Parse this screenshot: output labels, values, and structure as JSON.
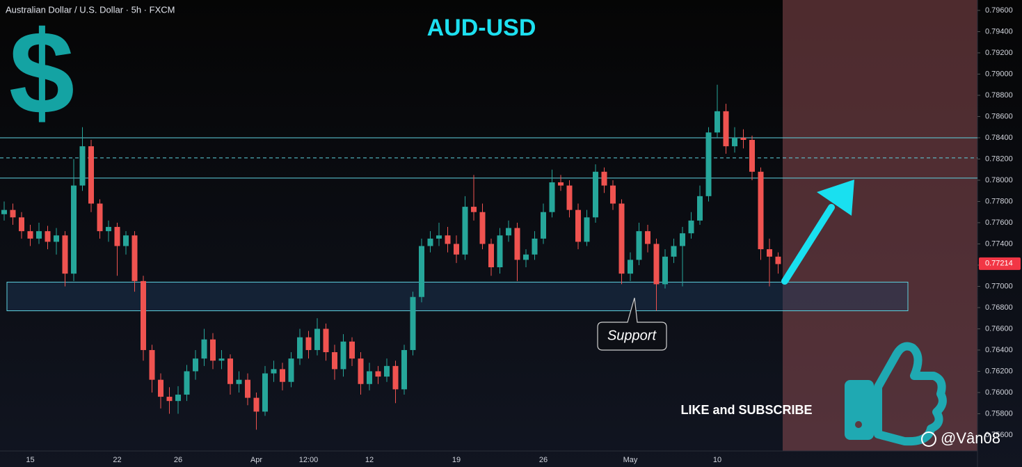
{
  "chart_data": {
    "type": "candlestick",
    "title": "Australian Dollar / U.S. Dollar · 5h · FXCM",
    "heading": "AUD-USD",
    "categories": [
      null,
      null,
      null,
      "15",
      null,
      null,
      null,
      null,
      null,
      null,
      null,
      null,
      null,
      "22",
      null,
      null,
      null,
      null,
      null,
      null,
      "26",
      null,
      null,
      null,
      null,
      null,
      null,
      null,
      null,
      "Apr",
      null,
      null,
      null,
      null,
      null,
      "12:00",
      null,
      null,
      null,
      null,
      null,
      null,
      "12",
      null,
      null,
      null,
      null,
      null,
      null,
      null,
      null,
      null,
      "19",
      null,
      null,
      null,
      null,
      null,
      null,
      null,
      null,
      null,
      "26",
      null,
      null,
      null,
      null,
      null,
      null,
      null,
      null,
      null,
      "May",
      null,
      null,
      null,
      null,
      null,
      null,
      null,
      null,
      null,
      "10",
      null,
      null,
      null,
      null,
      null,
      null,
      null
    ],
    "open": [
      0.7768,
      0.7772,
      0.7765,
      0.7752,
      0.7745,
      0.7752,
      0.7742,
      0.7748,
      0.7712,
      0.7795,
      0.7832,
      0.7778,
      0.7752,
      0.7756,
      0.7738,
      0.7748,
      0.7705,
      0.764,
      0.7612,
      0.7596,
      0.7592,
      0.7598,
      0.762,
      0.7632,
      0.765,
      0.763,
      0.7632,
      0.7608,
      0.7612,
      0.7595,
      0.7582,
      0.7618,
      0.7622,
      0.761,
      0.7632,
      0.7652,
      0.764,
      0.766,
      0.7638,
      0.7622,
      0.7648,
      0.7632,
      0.7608,
      0.762,
      0.7615,
      0.7625,
      0.7603,
      0.764,
      0.769,
      0.7738,
      0.7745,
      0.7748,
      0.774,
      0.773,
      0.7775,
      0.777,
      0.774,
      0.7718,
      0.7748,
      0.7755,
      0.7725,
      0.773,
      0.7745,
      0.777,
      0.7798,
      0.7795,
      0.7772,
      0.7742,
      0.7765,
      0.7808,
      0.7795,
      0.7778,
      0.7712,
      0.7725,
      0.7752,
      0.774,
      0.7702,
      0.7728,
      0.7738,
      0.775,
      0.7762,
      0.7785,
      0.7845,
      0.7865,
      0.7832,
      0.784,
      0.7838,
      0.7808,
      0.7735,
      0.7728
    ],
    "high": [
      0.778,
      0.7778,
      0.777,
      0.7758,
      0.776,
      0.7757,
      0.7755,
      0.7752,
      0.782,
      0.785,
      0.7838,
      0.7782,
      0.7762,
      0.776,
      0.7752,
      0.7752,
      0.771,
      0.7645,
      0.7618,
      0.7605,
      0.7606,
      0.7626,
      0.764,
      0.766,
      0.7656,
      0.764,
      0.7636,
      0.762,
      0.7618,
      0.76,
      0.7625,
      0.763,
      0.7628,
      0.7638,
      0.766,
      0.7658,
      0.767,
      0.7665,
      0.7645,
      0.7655,
      0.7652,
      0.7638,
      0.7628,
      0.7625,
      0.7632,
      0.763,
      0.7645,
      0.7695,
      0.7745,
      0.7752,
      0.776,
      0.7756,
      0.7748,
      0.7785,
      0.7805,
      0.7778,
      0.7745,
      0.7755,
      0.7762,
      0.776,
      0.7735,
      0.7752,
      0.7778,
      0.781,
      0.7805,
      0.78,
      0.7778,
      0.7772,
      0.7815,
      0.7812,
      0.78,
      0.7782,
      0.7732,
      0.776,
      0.7758,
      0.7745,
      0.7735,
      0.7745,
      0.7756,
      0.777,
      0.7795,
      0.785,
      0.789,
      0.7872,
      0.785,
      0.7848,
      0.7842,
      0.7812,
      0.7745,
      0.7732
    ],
    "low": [
      0.7762,
      0.7758,
      0.7745,
      0.7738,
      0.774,
      0.7735,
      0.773,
      0.77,
      0.7705,
      0.779,
      0.777,
      0.7745,
      0.7742,
      0.771,
      0.773,
      0.7695,
      0.763,
      0.76,
      0.7585,
      0.758,
      0.758,
      0.7592,
      0.7612,
      0.7625,
      0.7622,
      0.7622,
      0.7598,
      0.76,
      0.7588,
      0.7565,
      0.7578,
      0.761,
      0.7602,
      0.7605,
      0.7626,
      0.7632,
      0.7635,
      0.763,
      0.7612,
      0.7615,
      0.7625,
      0.7598,
      0.7602,
      0.7608,
      0.761,
      0.759,
      0.7598,
      0.7635,
      0.7685,
      0.7732,
      0.7738,
      0.7732,
      0.7722,
      0.7725,
      0.7762,
      0.7735,
      0.771,
      0.7712,
      0.7742,
      0.7705,
      0.7718,
      0.7725,
      0.774,
      0.7765,
      0.779,
      0.7765,
      0.7735,
      0.7738,
      0.776,
      0.7788,
      0.7772,
      0.7702,
      0.7705,
      0.772,
      0.7732,
      0.7677,
      0.7698,
      0.7722,
      0.77,
      0.7745,
      0.7758,
      0.778,
      0.784,
      0.7825,
      0.7826,
      0.783,
      0.78,
      0.7725,
      0.77,
      0.7712
    ],
    "close": [
      0.7772,
      0.7765,
      0.7752,
      0.7745,
      0.7752,
      0.7742,
      0.7748,
      0.7712,
      0.7795,
      0.7832,
      0.7778,
      0.7752,
      0.7756,
      0.7738,
      0.7748,
      0.7705,
      0.764,
      0.7612,
      0.7596,
      0.7592,
      0.7598,
      0.762,
      0.7632,
      0.765,
      0.763,
      0.7632,
      0.7608,
      0.7612,
      0.7595,
      0.7582,
      0.7618,
      0.7622,
      0.761,
      0.7632,
      0.7652,
      0.764,
      0.766,
      0.7638,
      0.7622,
      0.7648,
      0.7632,
      0.7608,
      0.762,
      0.7615,
      0.7625,
      0.7603,
      0.764,
      0.769,
      0.7738,
      0.7745,
      0.7748,
      0.774,
      0.773,
      0.7775,
      0.777,
      0.774,
      0.7718,
      0.7748,
      0.7755,
      0.7725,
      0.773,
      0.7745,
      0.777,
      0.7798,
      0.7795,
      0.7772,
      0.7742,
      0.7765,
      0.7808,
      0.7795,
      0.7778,
      0.7712,
      0.7725,
      0.7752,
      0.774,
      0.7702,
      0.7728,
      0.7738,
      0.775,
      0.7762,
      0.7785,
      0.7845,
      0.7865,
      0.7832,
      0.784,
      0.7838,
      0.7808,
      0.7735,
      0.7728,
      0.7721
    ],
    "up_color": "#26a69a",
    "down_color": "#ef5350",
    "ylim": [
      0.75449,
      0.79698
    ],
    "yticks": [
      {
        "value": 0.796,
        "label": "0.79600"
      },
      {
        "value": 0.794,
        "label": "0.79400"
      },
      {
        "value": 0.792,
        "label": "0.79200"
      },
      {
        "value": 0.79,
        "label": "0.79000"
      },
      {
        "value": 0.788,
        "label": "0.78800"
      },
      {
        "value": 0.786,
        "label": "0.78600"
      },
      {
        "value": 0.784,
        "label": "0.78400"
      },
      {
        "value": 0.782,
        "label": "0.78200"
      },
      {
        "value": 0.78,
        "label": "0.78000"
      },
      {
        "value": 0.778,
        "label": "0.77800"
      },
      {
        "value": 0.776,
        "label": "0.77600"
      },
      {
        "value": 0.774,
        "label": "0.77400"
      },
      {
        "value": 0.772,
        "label": "0.77200"
      },
      {
        "value": 0.77,
        "label": "0.77000"
      },
      {
        "value": 0.768,
        "label": "0.76800"
      },
      {
        "value": 0.766,
        "label": "0.76600"
      },
      {
        "value": 0.764,
        "label": "0.76400"
      },
      {
        "value": 0.762,
        "label": "0.76200"
      },
      {
        "value": 0.76,
        "label": "0.76000"
      },
      {
        "value": 0.758,
        "label": "0.75800"
      },
      {
        "value": 0.756,
        "label": "0.75600"
      }
    ],
    "price_lines": [
      {
        "value": 0.784,
        "style": "solid"
      },
      {
        "value": 0.7821,
        "style": "dashed"
      },
      {
        "value": 0.7802,
        "style": "solid"
      }
    ],
    "line_color": "#5fd3e0",
    "support_zone": [
      0.7677,
      0.7704
    ],
    "support_label": "Support",
    "last_price": {
      "value": 0.77214,
      "label": "0.77214"
    }
  },
  "overlay": {
    "symbol": "$",
    "call_to_action": "LIKE and SUBSCRIBE",
    "watermark": "@Vân08"
  }
}
